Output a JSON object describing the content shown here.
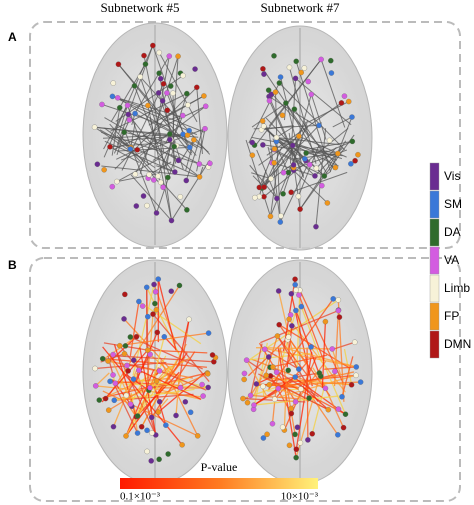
{
  "panels": [
    {
      "label": "A"
    },
    {
      "label": "B"
    }
  ],
  "columns": [
    "Subnetwork #5",
    "Subnetwork #7"
  ],
  "legend": [
    {
      "name": "Vis",
      "color": "#6a2c91"
    },
    {
      "name": "SM",
      "color": "#3a78d8"
    },
    {
      "name": "DA",
      "color": "#2f6b2c"
    },
    {
      "name": "VA",
      "color": "#d35ce0"
    },
    {
      "name": "Limb",
      "color": "#f7f2d8"
    },
    {
      "name": "FP",
      "color": "#f0961c"
    },
    {
      "name": "DMN",
      "color": "#b01818"
    }
  ],
  "colorbar": {
    "title": "P-value",
    "min_label": "0.1×10⁻³",
    "max_label": "10×10⁻³"
  }
}
